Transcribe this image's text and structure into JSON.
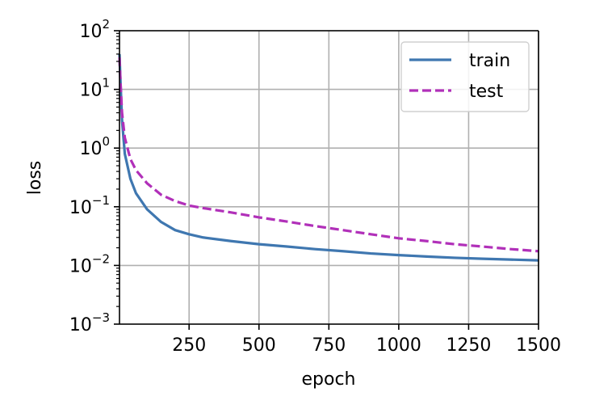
{
  "chart_data": {
    "type": "line",
    "title": "",
    "xlabel": "epoch",
    "ylabel": "loss",
    "xlim": [
      1,
      1500
    ],
    "ylim": [
      0.001,
      100
    ],
    "yscale": "log",
    "grid": true,
    "legend_position": "top-right",
    "x_ticks": [
      250,
      500,
      750,
      1000,
      1250,
      1500
    ],
    "x_tick_labels": [
      "250",
      "500",
      "750",
      "1000",
      "1250",
      "1500"
    ],
    "y_ticks": [
      0.001,
      0.01,
      0.1,
      1,
      10,
      100
    ],
    "y_tick_labels": [
      {
        "base": "10",
        "exp": "−3"
      },
      {
        "base": "10",
        "exp": "−2"
      },
      {
        "base": "10",
        "exp": "−1"
      },
      {
        "base": "10",
        "exp": "0"
      },
      {
        "base": "10",
        "exp": "1"
      },
      {
        "base": "10",
        "exp": "2"
      }
    ],
    "series": [
      {
        "name": "train",
        "color": "#3f77b0",
        "style": "solid",
        "x": [
          1,
          5,
          10,
          20,
          40,
          60,
          100,
          150,
          200,
          250,
          300,
          400,
          500,
          600,
          700,
          800,
          900,
          1000,
          1100,
          1200,
          1300,
          1400,
          1500
        ],
        "y": [
          40,
          12,
          3.0,
          0.8,
          0.3,
          0.17,
          0.09,
          0.055,
          0.04,
          0.034,
          0.03,
          0.026,
          0.023,
          0.021,
          0.019,
          0.0175,
          0.016,
          0.015,
          0.0142,
          0.0135,
          0.013,
          0.0126,
          0.0122
        ]
      },
      {
        "name": "test",
        "color": "#b130b9",
        "style": "dashed",
        "x": [
          1,
          5,
          10,
          20,
          40,
          60,
          100,
          150,
          200,
          250,
          300,
          400,
          500,
          600,
          700,
          800,
          900,
          1000,
          1100,
          1200,
          1300,
          1400,
          1500
        ],
        "y": [
          35,
          12,
          4.0,
          1.5,
          0.65,
          0.42,
          0.25,
          0.16,
          0.125,
          0.105,
          0.095,
          0.08,
          0.066,
          0.056,
          0.047,
          0.04,
          0.034,
          0.029,
          0.026,
          0.023,
          0.021,
          0.019,
          0.0175
        ]
      }
    ]
  }
}
